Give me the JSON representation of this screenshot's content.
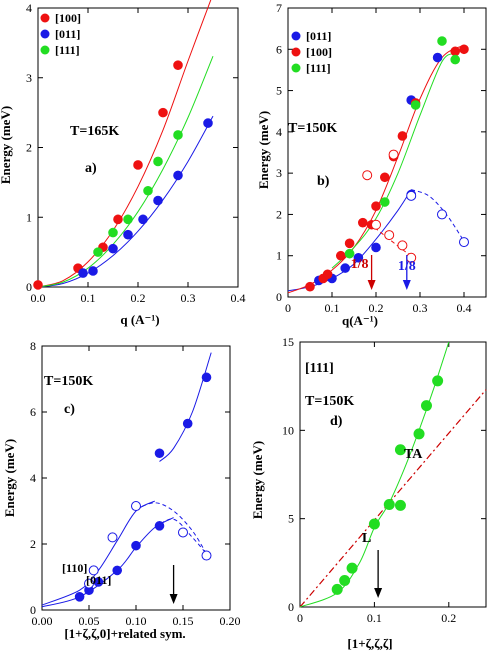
{
  "colors": {
    "red": "#ee1111",
    "blue": "#1a1ae6",
    "green": "#22dd22",
    "darkred": "#cc0000"
  },
  "chart_data": [
    {
      "type": "scatter",
      "panel": "a)",
      "annotation": "T=165K",
      "xlabel": "q (A⁻¹)",
      "ylabel": "Energy (meV)",
      "xlim": [
        0,
        0.4
      ],
      "ylim": [
        0,
        4
      ],
      "xticks": [
        "0.0",
        "0.1",
        "0.2",
        "0.3",
        "0.4"
      ],
      "yticks": [
        "0",
        "1",
        "2",
        "3",
        "4"
      ],
      "legend_position": "top-left",
      "series": [
        {
          "name": "[100]",
          "color": "red",
          "points": [
            [
              0.0,
              0.03
            ],
            [
              0.08,
              0.27
            ],
            [
              0.13,
              0.57
            ],
            [
              0.16,
              0.97
            ],
            [
              0.2,
              1.75
            ],
            [
              0.25,
              2.5
            ],
            [
              0.28,
              3.18
            ]
          ],
          "curve": [
            [
              0.0,
              0.0
            ],
            [
              0.05,
              0.09
            ],
            [
              0.1,
              0.36
            ],
            [
              0.15,
              0.81
            ],
            [
              0.2,
              1.44
            ],
            [
              0.25,
              2.25
            ],
            [
              0.3,
              3.24
            ],
            [
              0.35,
              4.2
            ]
          ]
        },
        {
          "name": "[011]",
          "color": "blue",
          "points": [
            [
              0.09,
              0.2
            ],
            [
              0.11,
              0.23
            ],
            [
              0.15,
              0.55
            ],
            [
              0.18,
              0.75
            ],
            [
              0.21,
              0.97
            ],
            [
              0.24,
              1.24
            ],
            [
              0.28,
              1.6
            ],
            [
              0.34,
              2.35
            ]
          ],
          "curve": [
            [
              0.0,
              0.0
            ],
            [
              0.05,
              0.05
            ],
            [
              0.1,
              0.2
            ],
            [
              0.15,
              0.45
            ],
            [
              0.2,
              0.8
            ],
            [
              0.25,
              1.25
            ],
            [
              0.3,
              1.8
            ],
            [
              0.35,
              2.45
            ]
          ]
        },
        {
          "name": "[111]",
          "color": "green",
          "points": [
            [
              0.12,
              0.5
            ],
            [
              0.15,
              0.78
            ],
            [
              0.18,
              0.97
            ],
            [
              0.22,
              1.38
            ],
            [
              0.24,
              1.8
            ],
            [
              0.28,
              2.18
            ]
          ],
          "curve": [
            [
              0.0,
              0.0
            ],
            [
              0.05,
              0.07
            ],
            [
              0.1,
              0.27
            ],
            [
              0.15,
              0.61
            ],
            [
              0.2,
              1.08
            ],
            [
              0.25,
              1.69
            ],
            [
              0.3,
              2.43
            ],
            [
              0.35,
              3.31
            ]
          ]
        }
      ]
    },
    {
      "type": "scatter",
      "panel": "b)",
      "annotation": "T=150K",
      "xlabel": "q(A⁻¹)",
      "ylabel": "Energy (meV)",
      "xlim": [
        0,
        0.45
      ],
      "ylim": [
        0,
        7
      ],
      "xticks": [
        "0",
        "0.1",
        "0.2",
        "0.3",
        "0.4"
      ],
      "yticks": [
        "0",
        "1",
        "2",
        "3",
        "4",
        "5",
        "6",
        "7"
      ],
      "legend_position": "top-left",
      "markers": [
        {
          "label": "1/8",
          "x": 0.19,
          "color": "darkred"
        },
        {
          "label": "1/8",
          "x": 0.27,
          "color": "blue"
        }
      ],
      "series": [
        {
          "name": "[011]",
          "color": "blue",
          "points": [
            [
              0.07,
              0.4
            ],
            [
              0.1,
              0.45
            ],
            [
              0.13,
              0.7
            ],
            [
              0.16,
              0.95
            ],
            [
              0.2,
              1.2
            ],
            [
              0.28,
              2.48
            ],
            [
              0.28,
              4.77
            ],
            [
              0.34,
              5.8
            ]
          ],
          "open_points": [
            [
              0.28,
              2.45
            ],
            [
              0.35,
              2.0
            ],
            [
              0.4,
              1.33
            ]
          ],
          "curve": [
            [
              0.0,
              0.15
            ],
            [
              0.05,
              0.25
            ],
            [
              0.1,
              0.45
            ],
            [
              0.15,
              0.8
            ],
            [
              0.2,
              1.4
            ],
            [
              0.25,
              2.1
            ],
            [
              0.28,
              2.6
            ]
          ],
          "dashed_curve": [
            [
              0.28,
              2.6
            ],
            [
              0.32,
              2.45
            ],
            [
              0.36,
              2.0
            ],
            [
              0.4,
              1.35
            ]
          ]
        },
        {
          "name": "[100]",
          "color": "red",
          "points": [
            [
              0.05,
              0.25
            ],
            [
              0.08,
              0.45
            ],
            [
              0.09,
              0.55
            ],
            [
              0.12,
              1.0
            ],
            [
              0.14,
              1.3
            ],
            [
              0.17,
              1.8
            ],
            [
              0.19,
              1.75
            ],
            [
              0.2,
              2.2
            ],
            [
              0.22,
              2.9
            ],
            [
              0.24,
              3.4
            ],
            [
              0.26,
              3.9
            ],
            [
              0.29,
              4.7
            ],
            [
              0.38,
              5.95
            ],
            [
              0.4,
              6.0
            ]
          ],
          "open_points": [
            [
              0.18,
              2.95
            ],
            [
              0.2,
              1.75
            ],
            [
              0.23,
              1.5
            ],
            [
              0.26,
              1.25
            ],
            [
              0.28,
              0.95
            ],
            [
              0.24,
              3.45
            ]
          ],
          "curve": [
            [
              0.0,
              0.1
            ],
            [
              0.05,
              0.3
            ],
            [
              0.1,
              0.65
            ],
            [
              0.15,
              1.2
            ],
            [
              0.2,
              2.1
            ],
            [
              0.25,
              3.4
            ],
            [
              0.3,
              4.8
            ],
            [
              0.35,
              5.8
            ],
            [
              0.4,
              6.1
            ]
          ],
          "dashed_curve": [
            [
              0.17,
              1.85
            ],
            [
              0.2,
              1.65
            ],
            [
              0.23,
              1.4
            ],
            [
              0.26,
              1.15
            ],
            [
              0.28,
              1.0
            ]
          ]
        },
        {
          "name": "[111]",
          "color": "green",
          "points": [
            [
              0.14,
              1.05
            ],
            [
              0.22,
              2.3
            ],
            [
              0.29,
              4.65
            ],
            [
              0.35,
              6.2
            ],
            [
              0.38,
              5.75
            ]
          ],
          "curve": [
            [
              0.1,
              0.7
            ],
            [
              0.15,
              1.2
            ],
            [
              0.2,
              1.9
            ],
            [
              0.25,
              3.0
            ],
            [
              0.3,
              4.4
            ],
            [
              0.35,
              5.7
            ],
            [
              0.38,
              5.9
            ]
          ]
        }
      ]
    },
    {
      "type": "scatter",
      "panel": "c)",
      "annotation": "T=150K",
      "xlabel": "[1+ζ,ζ,0]+related sym.",
      "ylabel": "Energy (meV)",
      "xlim": [
        0,
        0.2
      ],
      "ylim": [
        0,
        8
      ],
      "xticks": [
        "0.00",
        "0.05",
        "0.10",
        "0.15",
        "0.20"
      ],
      "yticks": [
        "0",
        "2",
        "4",
        "6",
        "8"
      ],
      "labels": [
        "[110]",
        "[011]"
      ],
      "arrow_x": 0.14,
      "series": [
        {
          "name": "[011]",
          "color": "blue",
          "points": [
            [
              0.04,
              0.4
            ],
            [
              0.05,
              0.6
            ],
            [
              0.06,
              0.85
            ],
            [
              0.08,
              1.2
            ],
            [
              0.1,
              1.95
            ],
            [
              0.125,
              2.55
            ],
            [
              0.125,
              4.75
            ],
            [
              0.155,
              5.65
            ],
            [
              0.175,
              7.05
            ]
          ],
          "open_points": [
            [
              0.05,
              0.8
            ],
            [
              0.055,
              1.2
            ],
            [
              0.075,
              2.2
            ],
            [
              0.1,
              3.15
            ],
            [
              0.15,
              2.35
            ],
            [
              0.175,
              1.65
            ]
          ],
          "curves": [
            [
              [
                0.0,
                0.1
              ],
              [
                0.04,
                0.4
              ],
              [
                0.08,
                1.2
              ],
              [
                0.1,
                1.9
              ],
              [
                0.12,
                2.5
              ],
              [
                0.14,
                2.8
              ]
            ],
            [
              [
                0.0,
                0.15
              ],
              [
                0.04,
                0.6
              ],
              [
                0.06,
                1.2
              ],
              [
                0.08,
                2.1
              ],
              [
                0.1,
                3.0
              ],
              [
                0.12,
                3.3
              ]
            ],
            [
              [
                0.125,
                4.5
              ],
              [
                0.14,
                4.9
              ],
              [
                0.16,
                6.0
              ],
              [
                0.18,
                7.8
              ]
            ]
          ],
          "dashed_curves": [
            [
              [
                0.1,
                3.05
              ],
              [
                0.12,
                3.25
              ],
              [
                0.14,
                3.0
              ],
              [
                0.16,
                2.4
              ],
              [
                0.175,
                1.7
              ]
            ],
            [
              [
                0.12,
                2.5
              ],
              [
                0.14,
                2.75
              ],
              [
                0.16,
                2.2
              ],
              [
                0.175,
                1.7
              ]
            ]
          ]
        }
      ]
    },
    {
      "type": "scatter",
      "panel": "d)",
      "annotation": "T=150K",
      "label": "[111]",
      "xlabel": "[1+ζ,ζ,ζ]",
      "ylabel": "Energy (meV)",
      "xlim": [
        0,
        0.25
      ],
      "ylim": [
        0,
        15
      ],
      "xticks": [
        "0",
        "0.1",
        "0.2"
      ],
      "yticks": [
        "0",
        "5",
        "10",
        "15"
      ],
      "curve_labels": [
        "TA",
        "L"
      ],
      "arrow_x": 0.105,
      "series": [
        {
          "name": "[111]",
          "color": "green",
          "points": [
            [
              0.05,
              1.0
            ],
            [
              0.06,
              1.5
            ],
            [
              0.07,
              2.2
            ],
            [
              0.1,
              4.7
            ],
            [
              0.12,
              5.8
            ],
            [
              0.135,
              5.75
            ],
            [
              0.135,
              8.9
            ],
            [
              0.16,
              9.8
            ],
            [
              0.17,
              11.4
            ],
            [
              0.185,
              12.8
            ]
          ],
          "curve": [
            [
              0.0,
              0.0
            ],
            [
              0.05,
              0.8
            ],
            [
              0.08,
              2.5
            ],
            [
              0.1,
              4.5
            ],
            [
              0.12,
              5.9
            ],
            [
              0.14,
              7.8
            ],
            [
              0.16,
              10.0
            ],
            [
              0.18,
              12.4
            ],
            [
              0.2,
              15.0
            ]
          ],
          "dashdot_line": [
            [
              0.0,
              0.0
            ],
            [
              0.25,
              12.3
            ]
          ]
        }
      ]
    }
  ]
}
